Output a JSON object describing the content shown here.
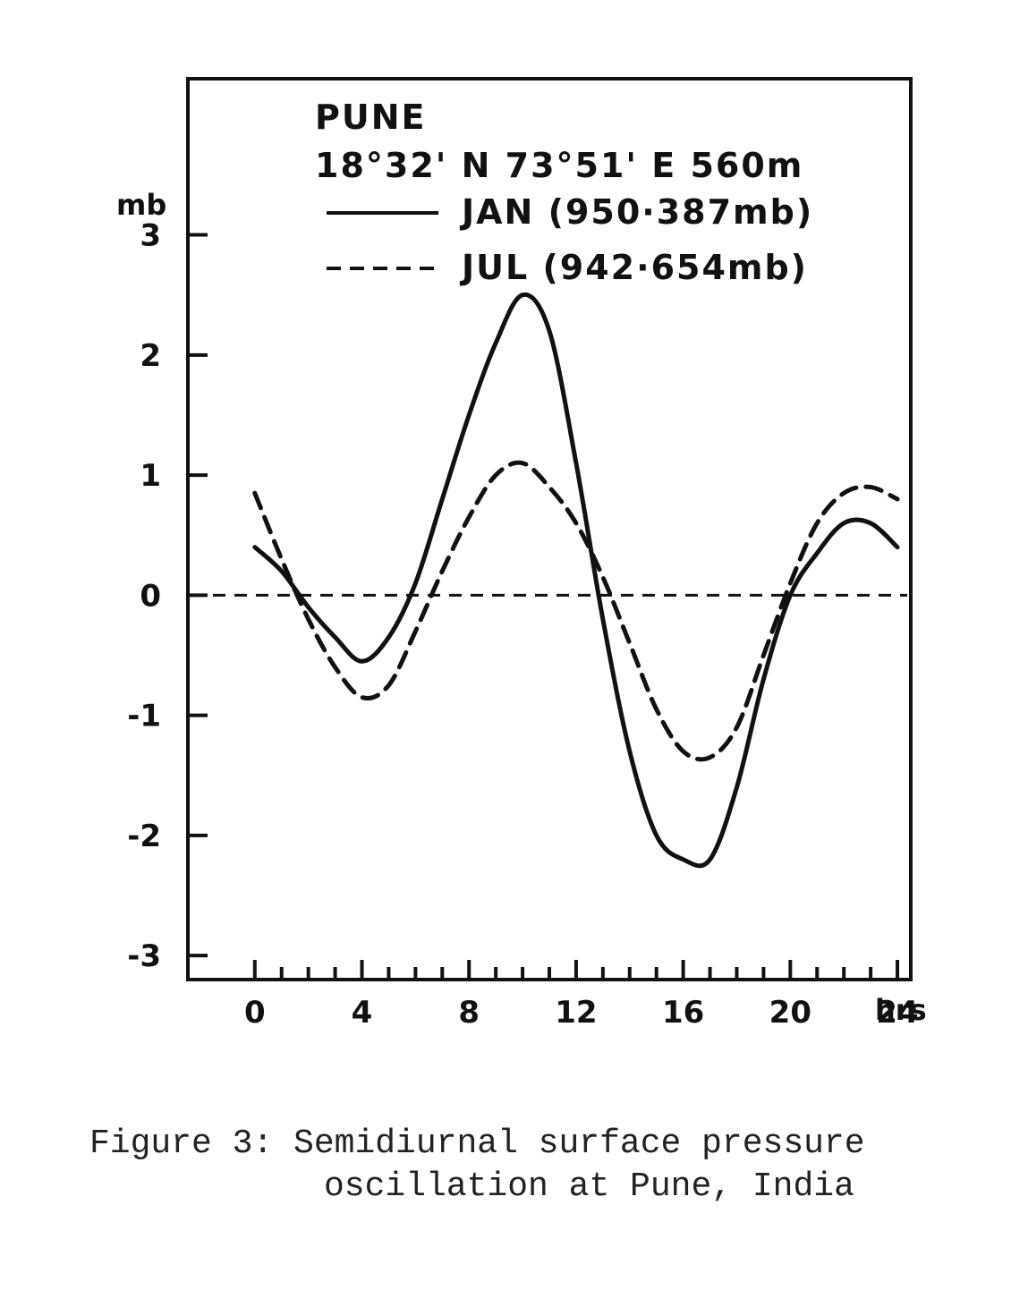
{
  "chart_data": {
    "type": "line",
    "title": "PUNE",
    "subtitle": "18°32' N 73°51' E 560m",
    "ylabel": "mb",
    "xlabel": "hrs",
    "xlim": [
      -2.5,
      24.5
    ],
    "ylim": [
      -3.2,
      4.3
    ],
    "x_ticks": [
      0,
      4,
      8,
      12,
      16,
      20,
      24
    ],
    "x_tick_labels": [
      "0",
      "4",
      "8",
      "12",
      "16",
      "20",
      "24"
    ],
    "x_unit": "hrs",
    "y_ticks": [
      3,
      2,
      1,
      0,
      -1,
      -2,
      -3
    ],
    "y_tick_labels": [
      "3",
      "2",
      "1",
      "0",
      "-1",
      "-2",
      "-3"
    ],
    "zero_line": "dashed",
    "legend": {
      "placement": "top",
      "entries": [
        {
          "text": "JAN (950·387mb)",
          "style": "solid"
        },
        {
          "text": "JUL (942·654mb)",
          "style": "dashed"
        }
      ]
    },
    "series": [
      {
        "name": "JAN (950·387mb)",
        "style": "solid",
        "x": [
          0,
          1,
          2,
          3,
          4,
          5,
          6,
          7,
          8,
          9,
          10,
          11,
          12,
          13,
          14,
          15,
          16,
          17,
          18,
          19,
          20,
          21,
          22,
          23,
          24
        ],
        "y": [
          0.4,
          0.2,
          -0.1,
          -0.35,
          -0.55,
          -0.35,
          0.1,
          0.8,
          1.5,
          2.1,
          2.5,
          2.2,
          1.1,
          -0.2,
          -1.3,
          -2.0,
          -2.2,
          -2.2,
          -1.6,
          -0.7,
          0.0,
          0.35,
          0.6,
          0.6,
          0.4
        ]
      },
      {
        "name": "JUL (942·654mb)",
        "style": "dashed",
        "x": [
          0,
          1,
          2,
          3,
          4,
          5,
          6,
          7,
          8,
          9,
          10,
          11,
          12,
          13,
          14,
          15,
          16,
          17,
          18,
          19,
          20,
          21,
          22,
          23,
          24
        ],
        "y": [
          0.85,
          0.3,
          -0.2,
          -0.6,
          -0.85,
          -0.75,
          -0.3,
          0.2,
          0.65,
          1.0,
          1.1,
          0.9,
          0.6,
          0.15,
          -0.4,
          -0.95,
          -1.3,
          -1.35,
          -1.1,
          -0.5,
          0.1,
          0.6,
          0.85,
          0.9,
          0.8
        ]
      }
    ]
  },
  "caption": {
    "line1": "Figure 3: Semidiurnal surface pressure",
    "line2": "oscillation at Pune, India"
  }
}
